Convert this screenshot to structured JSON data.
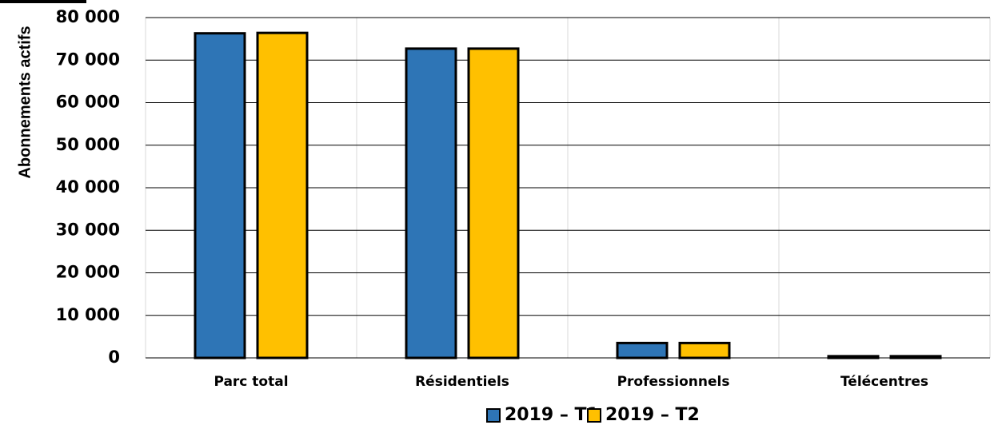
{
  "chart_data": {
    "type": "bar",
    "y_label": "Abonnements actifs",
    "categories": [
      "Parc total",
      "Résidentiels",
      "Professionnels",
      "Télécentres"
    ],
    "series": [
      {
        "name": "2019 – T1",
        "color": "#2e75b6",
        "values": [
          76300,
          72700,
          3500,
          400
        ]
      },
      {
        "name": "2019 – T2",
        "color": "#ffc000",
        "values": [
          76400,
          72700,
          3500,
          400
        ]
      }
    ],
    "ylim": [
      0,
      80000
    ],
    "yticks": [
      {
        "value": 0,
        "label": "0"
      },
      {
        "value": 10000,
        "label": "10 000"
      },
      {
        "value": 20000,
        "label": "20 000"
      },
      {
        "value": 30000,
        "label": "30 000"
      },
      {
        "value": 40000,
        "label": "40 000"
      },
      {
        "value": 50000,
        "label": "50 000"
      },
      {
        "value": 60000,
        "label": "60 000"
      },
      {
        "value": 70000,
        "label": "70 000"
      },
      {
        "value": 80000,
        "label": "80 000"
      }
    ],
    "grid": true,
    "legend": "bottom"
  }
}
